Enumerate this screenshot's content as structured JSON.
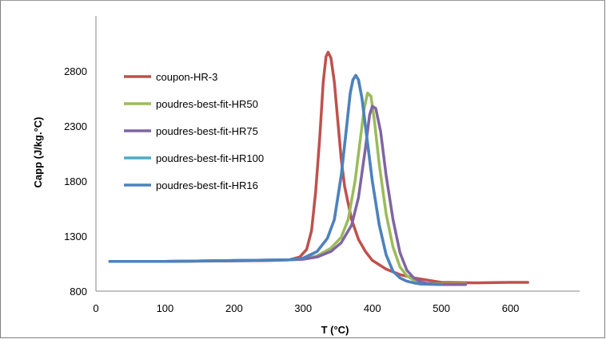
{
  "chart_data": {
    "type": "line",
    "title": "",
    "xlabel": "T (°C)",
    "ylabel": "Capp (J/kg.°C)",
    "xlim": [
      0,
      700
    ],
    "ylim": [
      800,
      3300
    ],
    "xticks": [
      "0",
      "100",
      "200",
      "300",
      "400",
      "500",
      "600"
    ],
    "yticks": [
      "800",
      "1300",
      "1800",
      "2300",
      "2800"
    ],
    "grid": false,
    "legend_position": "top-left",
    "series": [
      {
        "name": "coupon-HR-3",
        "color": "#c0504d",
        "x": [
          20,
          100,
          200,
          250,
          280,
          295,
          305,
          312,
          318,
          324,
          329,
          333,
          336,
          340,
          345,
          350,
          355,
          360,
          370,
          380,
          390,
          400,
          420,
          440,
          460,
          480,
          500,
          550,
          600,
          625
        ],
        "y": [
          1070,
          1070,
          1075,
          1078,
          1085,
          1110,
          1180,
          1350,
          1700,
          2200,
          2700,
          2930,
          2970,
          2920,
          2700,
          2350,
          2000,
          1750,
          1450,
          1270,
          1160,
          1080,
          1000,
          950,
          920,
          900,
          880,
          875,
          880,
          880
        ]
      },
      {
        "name": "poudres-best-fit-HR50",
        "color": "#9bbb59",
        "x": [
          20,
          100,
          200,
          280,
          300,
          320,
          340,
          355,
          365,
          375,
          382,
          388,
          393,
          398,
          403,
          410,
          420,
          430,
          440,
          450,
          460,
          470,
          480,
          500,
          535
        ],
        "y": [
          1070,
          1070,
          1078,
          1085,
          1095,
          1120,
          1190,
          1290,
          1450,
          1800,
          2150,
          2450,
          2600,
          2570,
          2350,
          1950,
          1500,
          1200,
          1020,
          940,
          900,
          880,
          870,
          865,
          865
        ]
      },
      {
        "name": "poudres-best-fit-HR75",
        "color": "#8064a2",
        "x": [
          20,
          100,
          200,
          280,
          300,
          320,
          340,
          355,
          370,
          380,
          390,
          396,
          400,
          405,
          412,
          420,
          430,
          440,
          450,
          460,
          470,
          480,
          490,
          500,
          535
        ],
        "y": [
          1070,
          1070,
          1078,
          1085,
          1090,
          1110,
          1160,
          1240,
          1400,
          1650,
          2100,
          2400,
          2480,
          2460,
          2250,
          1850,
          1450,
          1150,
          990,
          920,
          885,
          870,
          865,
          860,
          860
        ]
      },
      {
        "name": "poudres-best-fit-HR100",
        "color": "#4bacc6",
        "x": [
          20,
          100,
          200,
          280,
          300,
          320,
          335,
          345,
          355,
          362,
          368,
          372,
          376,
          380,
          385,
          392,
          400,
          410,
          420,
          430,
          440,
          450,
          460,
          470,
          500
        ],
        "y": [
          1070,
          1070,
          1078,
          1085,
          1100,
          1160,
          1280,
          1450,
          1850,
          2250,
          2600,
          2720,
          2760,
          2720,
          2550,
          2200,
          1800,
          1400,
          1130,
          980,
          920,
          890,
          875,
          865,
          860
        ]
      },
      {
        "name": "poudres-best-fit-HR16",
        "color": "#4f81bd",
        "x": [
          20,
          100,
          200,
          280,
          300,
          320,
          335,
          345,
          355,
          362,
          368,
          372,
          376,
          380,
          385,
          392,
          400,
          410,
          420,
          430,
          440,
          450,
          460,
          470,
          500
        ],
        "y": [
          1070,
          1070,
          1078,
          1085,
          1100,
          1160,
          1280,
          1450,
          1850,
          2250,
          2600,
          2720,
          2760,
          2720,
          2550,
          2200,
          1800,
          1400,
          1130,
          980,
          920,
          890,
          875,
          865,
          860
        ]
      }
    ]
  }
}
